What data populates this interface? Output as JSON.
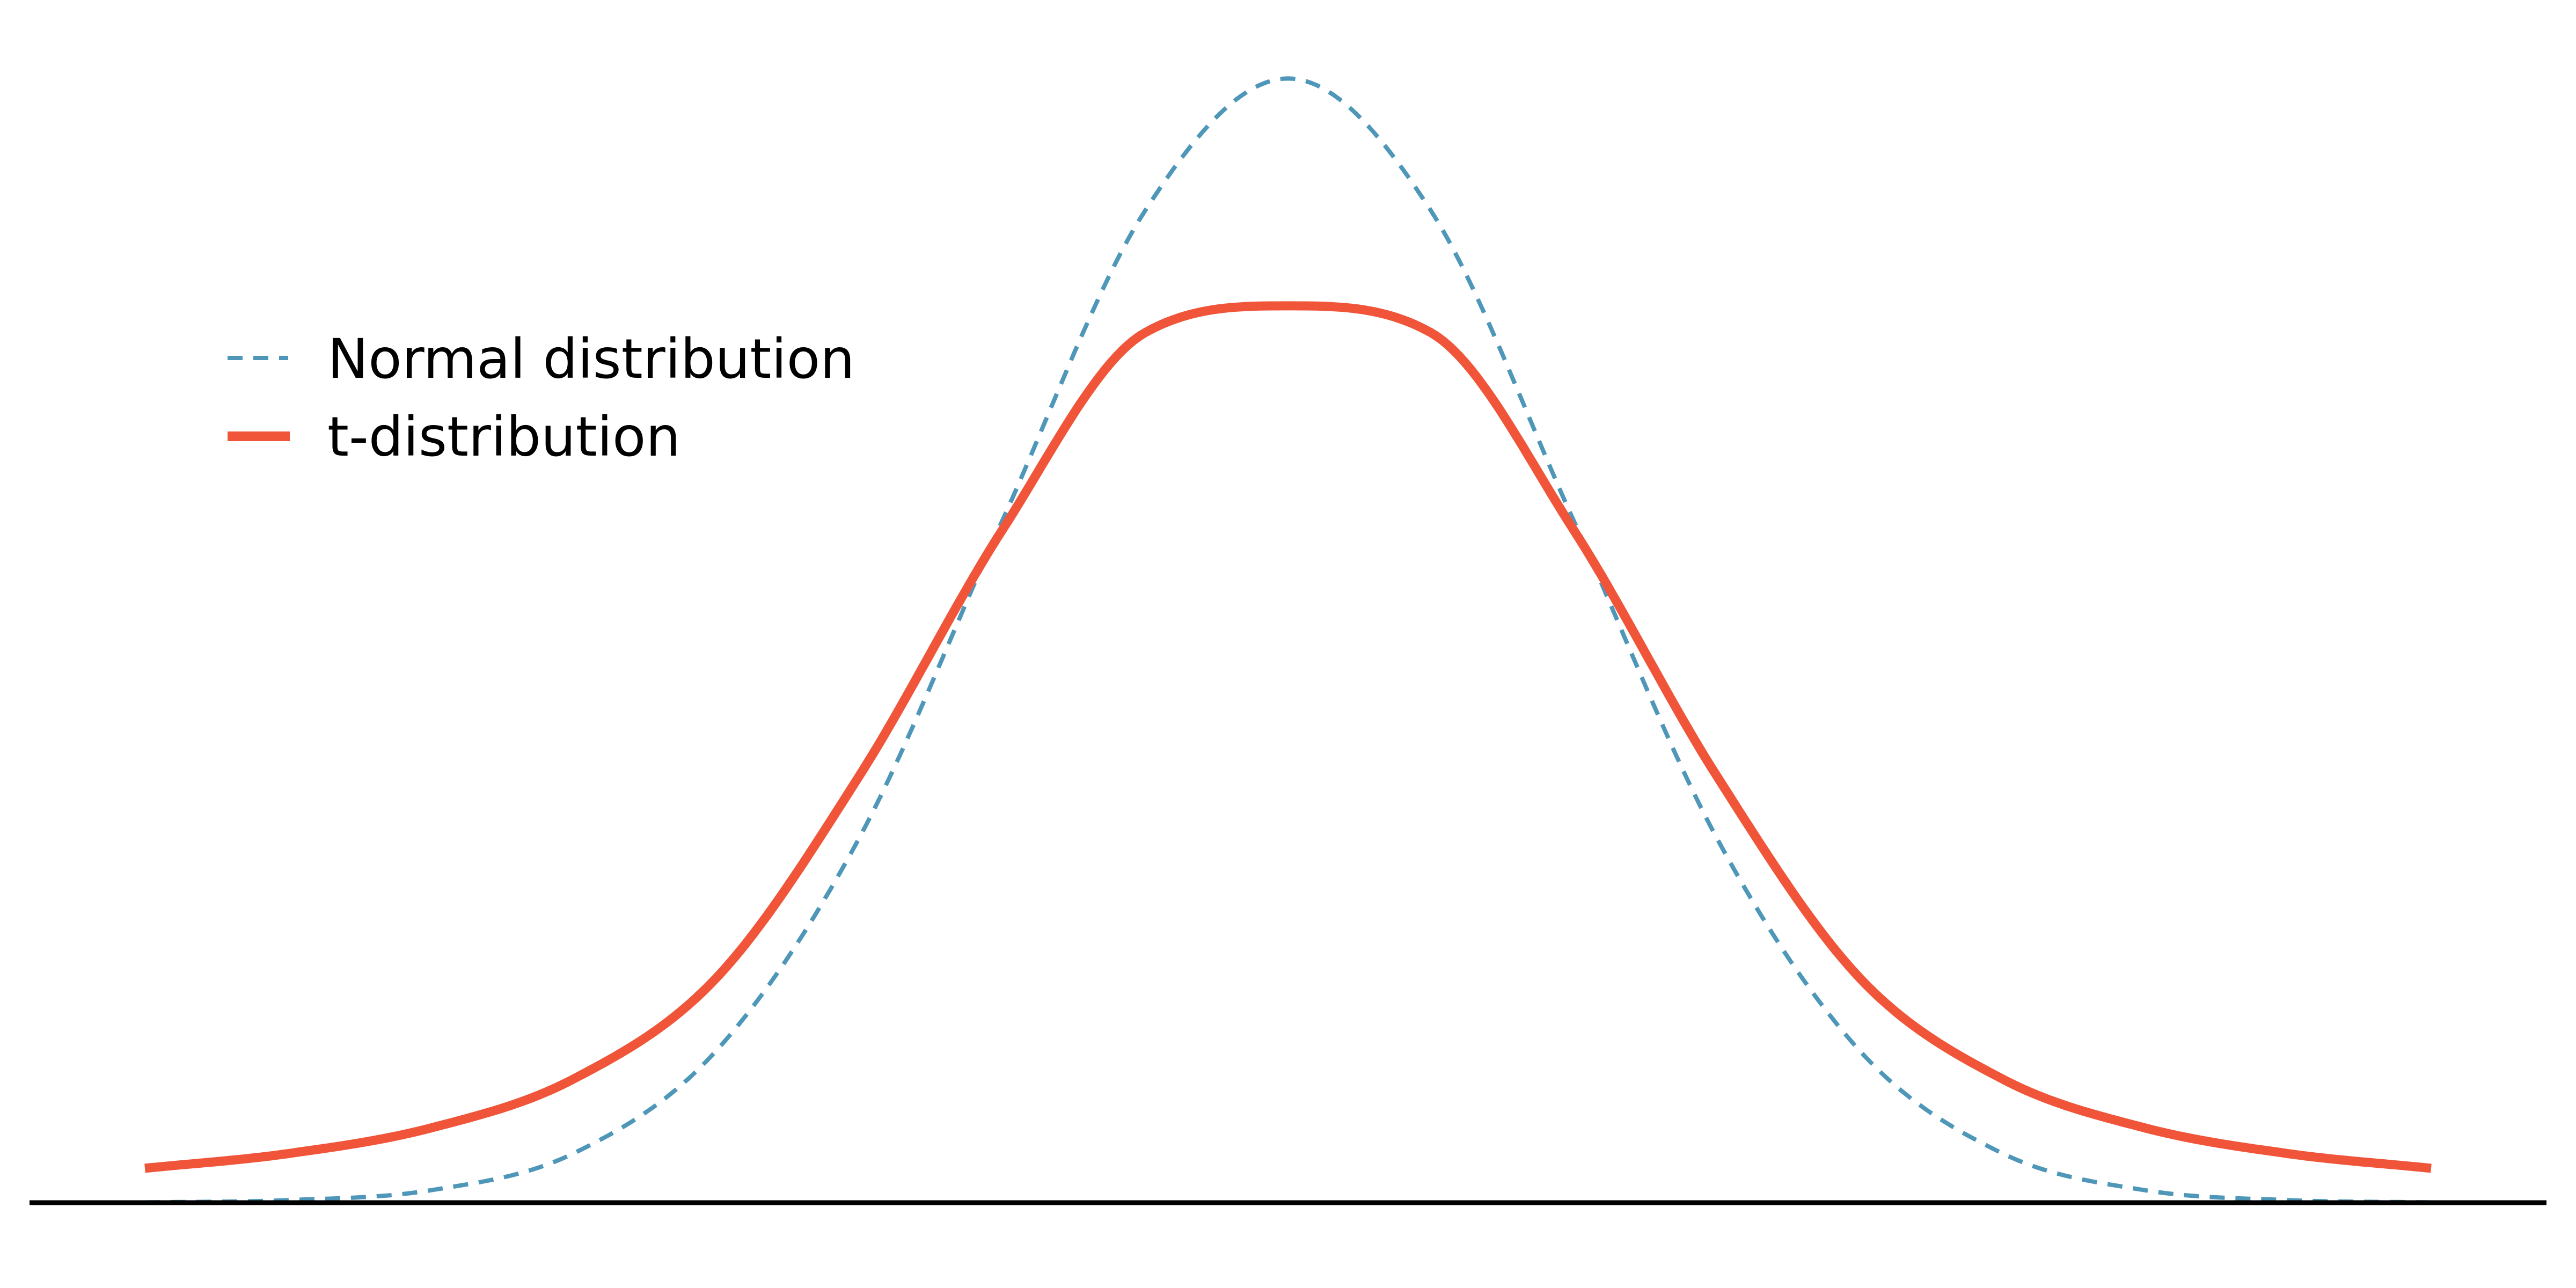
{
  "chart_data": {
    "type": "line",
    "title": "",
    "xlabel": "",
    "ylabel": "",
    "xlim": [
      -4,
      4
    ],
    "ylim": [
      0,
      0.4
    ],
    "x_axis_visible": true,
    "y_axis_visible": false,
    "ticks_visible": false,
    "grid": false,
    "legend_position": "upper-left",
    "series": [
      {
        "name": "Normal distribution",
        "line_style": "dashed",
        "color": "#4e97b8",
        "x": [
          -4,
          -3.5,
          -3,
          -2.5,
          -2,
          -1.5,
          -1,
          -0.5,
          0,
          0.5,
          1,
          1.5,
          2,
          2.5,
          3,
          3.5,
          4
        ],
        "values": [
          0.0001,
          0.0009,
          0.0044,
          0.0175,
          0.054,
          0.1295,
          0.242,
          0.3521,
          0.399,
          0.3521,
          0.242,
          0.1295,
          0.054,
          0.0175,
          0.0044,
          0.0009,
          0.0001
        ]
      },
      {
        "name": "t-distribution",
        "line_style": "solid",
        "color": "#f0553a",
        "x": [
          -4,
          -3.5,
          -3,
          -2.5,
          -2,
          -1.5,
          -1,
          -0.5,
          0,
          0.5,
          1,
          1.5,
          2,
          2.5,
          3,
          3.5,
          4
        ],
        "values": [
          0.0122,
          0.0174,
          0.0265,
          0.0439,
          0.0798,
          0.1515,
          0.2387,
          0.3088,
          0.3183,
          0.3088,
          0.2387,
          0.1515,
          0.0798,
          0.0439,
          0.0265,
          0.0174,
          0.0122
        ]
      }
    ]
  },
  "legend": {
    "items": [
      {
        "label": "Normal distribution",
        "color": "#4e97b8",
        "line_style": "dashed"
      },
      {
        "label": "t-distribution",
        "color": "#f0553a",
        "line_style": "solid"
      }
    ]
  }
}
